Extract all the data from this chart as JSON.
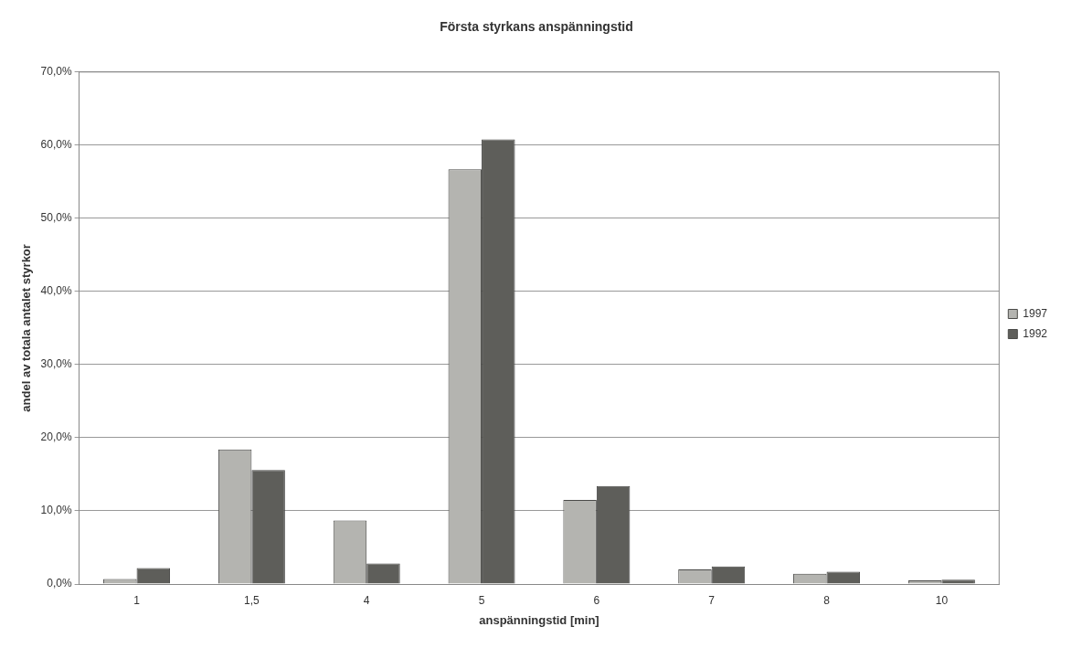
{
  "chart_data": {
    "type": "bar",
    "title": "Första styrkans anspänningstid",
    "xlabel": "anspänningstid [min]",
    "ylabel": "andel av totala antalet styrkor",
    "categories": [
      "1",
      "1,5",
      "4",
      "5",
      "6",
      "7",
      "8",
      "10"
    ],
    "series": [
      {
        "name": "1997",
        "color": "#b4b4b0",
        "values": [
          0.7,
          18.4,
          8.7,
          56.7,
          11.5,
          2.0,
          1.4,
          0.5
        ]
      },
      {
        "name": "1992",
        "color": "#5e5e5a",
        "values": [
          2.2,
          15.6,
          2.8,
          60.8,
          13.4,
          2.4,
          1.7,
          0.6
        ]
      }
    ],
    "ylim": [
      0,
      70
    ],
    "yticks": [
      {
        "value": 0,
        "label": "0,0%"
      },
      {
        "value": 10,
        "label": "10,0%"
      },
      {
        "value": 20,
        "label": "20,0%"
      },
      {
        "value": 30,
        "label": "30,0%"
      },
      {
        "value": 40,
        "label": "40,0%"
      },
      {
        "value": 50,
        "label": "50,0%"
      },
      {
        "value": 60,
        "label": "60,0%"
      },
      {
        "value": 70,
        "label": "70,0%"
      }
    ],
    "grid": "y",
    "legend": "right"
  }
}
